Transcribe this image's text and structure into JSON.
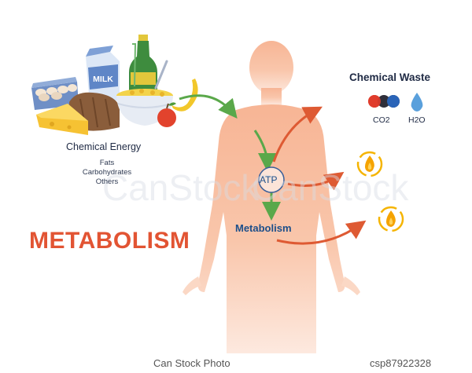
{
  "chemical_energy": {
    "title": "Chemical Energy",
    "items": [
      "Fats",
      "Carbohydrates",
      "Others"
    ]
  },
  "food": {
    "milk_label": "MILK"
  },
  "chemical_waste": {
    "title": "Chemical Waste",
    "co2": "CO2",
    "h2o": "H2O"
  },
  "body": {
    "atp": "ATP",
    "metabolism": "Metabolism"
  },
  "title": "METABOLISM",
  "watermark": "CanStock",
  "footer": {
    "credit": "Can Stock Photo",
    "code": "csp87922328"
  },
  "colors": {
    "title": "#e25433",
    "silhouette": "#f8c0a2",
    "arrow_green": "#5aa84a",
    "arrow_red": "#de5a33",
    "flame_orange": "#f5a300",
    "text_dark": "#1f2a44",
    "text_blue": "#1d4f8a"
  }
}
